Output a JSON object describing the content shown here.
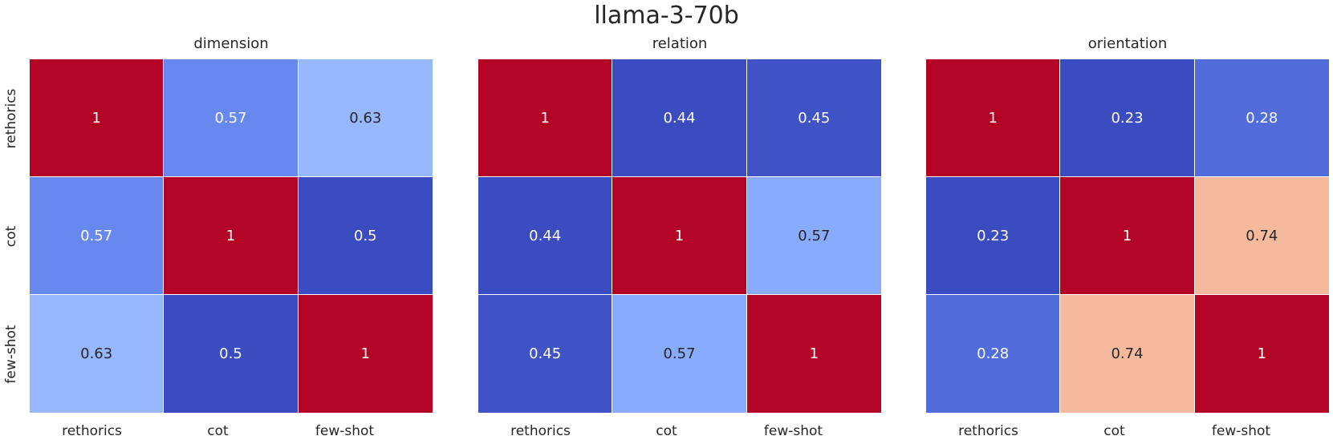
{
  "title": "llama-3-70b",
  "chart_data": [
    {
      "type": "heatmap",
      "title": "dimension",
      "x_labels": [
        "rethorics",
        "cot",
        "few-shot"
      ],
      "y_labels": [
        "rethorics",
        "cot",
        "few-shot"
      ],
      "values": [
        [
          1,
          0.57,
          0.63
        ],
        [
          0.57,
          1,
          0.5
        ],
        [
          0.63,
          0.5,
          1
        ]
      ],
      "colors": [
        [
          "#b40426",
          "#6788ee",
          "#97b8ff"
        ],
        [
          "#6788ee",
          "#b40426",
          "#3b4cc0"
        ],
        [
          "#97b8ff",
          "#3b4cc0",
          "#b40426"
        ]
      ],
      "text_colors": [
        [
          "#ffffff",
          "#ffffff",
          "#262626"
        ],
        [
          "#ffffff",
          "#ffffff",
          "#ffffff"
        ],
        [
          "#262626",
          "#ffffff",
          "#ffffff"
        ]
      ]
    },
    {
      "type": "heatmap",
      "title": "relation",
      "x_labels": [
        "rethorics",
        "cot",
        "few-shot"
      ],
      "y_labels": [
        "rethorics",
        "cot",
        "few-shot"
      ],
      "values": [
        [
          1,
          0.44,
          0.45
        ],
        [
          0.44,
          1,
          0.57
        ],
        [
          0.45,
          0.57,
          1
        ]
      ],
      "colors": [
        [
          "#b40426",
          "#3b4cc0",
          "#3f53c6"
        ],
        [
          "#3b4cc0",
          "#b40426",
          "#88abfd"
        ],
        [
          "#3f53c6",
          "#88abfd",
          "#b40426"
        ]
      ],
      "text_colors": [
        [
          "#ffffff",
          "#ffffff",
          "#ffffff"
        ],
        [
          "#ffffff",
          "#ffffff",
          "#262626"
        ],
        [
          "#ffffff",
          "#262626",
          "#ffffff"
        ]
      ]
    },
    {
      "type": "heatmap",
      "title": "orientation",
      "x_labels": [
        "rethorics",
        "cot",
        "few-shot"
      ],
      "y_labels": [
        "rethorics",
        "cot",
        "few-shot"
      ],
      "values": [
        [
          1,
          0.23,
          0.28
        ],
        [
          0.23,
          1,
          0.74
        ],
        [
          0.28,
          0.74,
          1
        ]
      ],
      "colors": [
        [
          "#b40426",
          "#3b4cc0",
          "#516ddb"
        ],
        [
          "#3b4cc0",
          "#b40426",
          "#f5b99e"
        ],
        [
          "#516ddb",
          "#f5b99e",
          "#b40426"
        ]
      ],
      "text_colors": [
        [
          "#ffffff",
          "#ffffff",
          "#ffffff"
        ],
        [
          "#ffffff",
          "#ffffff",
          "#262626"
        ],
        [
          "#ffffff",
          "#262626",
          "#ffffff"
        ]
      ]
    }
  ]
}
